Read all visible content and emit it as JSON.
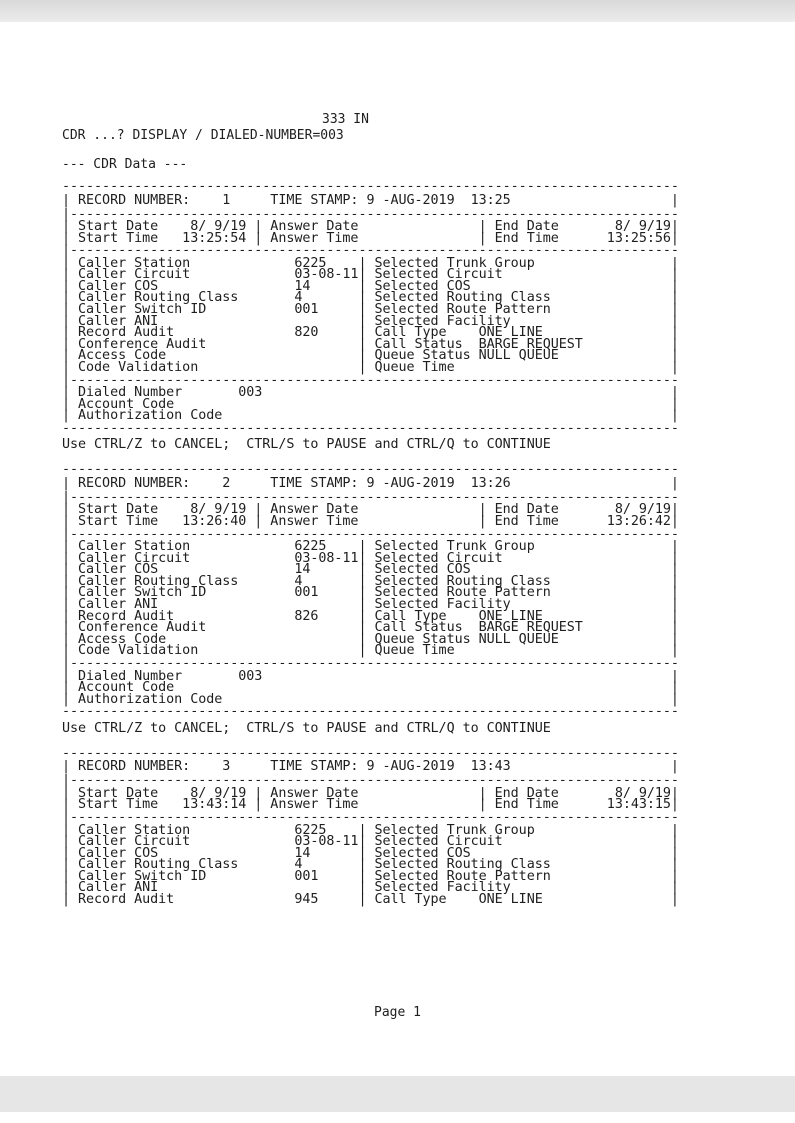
{
  "page_header": "333 IN",
  "command": "CDR ...? DISPLAY / DIALED-NUMBER=003",
  "section_title": "--- CDR Data ---",
  "footer_hint": "Use CTRL/Z to CANCEL;  CTRL/S to PAUSE and CTRL/Q to CONTINUE",
  "page_label": "Page 1",
  "labels": {
    "record_number": "RECORD NUMBER:",
    "time_stamp": "TIME STAMP:",
    "start_date": "Start Date",
    "start_time": "Start Time",
    "answer_date": "Answer Date",
    "answer_time": "Answer Time",
    "end_date": "End Date",
    "end_time": "End Time",
    "left_fields": [
      "Caller Station",
      "Caller Circuit",
      "Caller COS",
      "Caller Routing Class",
      "Caller Switch ID",
      "Caller ANI",
      "Record Audit",
      "Conference Audit",
      "Access Code",
      "Code Validation"
    ],
    "right_fields": [
      "Selected Trunk Group",
      "Selected Circuit",
      "Selected COS",
      "Selected Routing Class",
      "Selected Route Pattern",
      "Selected Facility",
      "Call Type",
      "Call Status",
      "Queue Status",
      "Queue Time"
    ],
    "dial_fields": [
      "Dialed Number",
      "Account Code",
      "Authorization Code"
    ]
  },
  "records": [
    {
      "number": "1",
      "time_stamp": "9 -AUG-2019  13:25",
      "start_date": "8/ 9/19",
      "start_time": "13:25:54",
      "end_date": "8/ 9/19",
      "end_time": "13:25:56",
      "left_values": [
        "6225",
        "03-08-11",
        "14",
        "4",
        "001",
        "",
        "820",
        "",
        "",
        ""
      ],
      "right_values": [
        "",
        "",
        "",
        "",
        "",
        "",
        "ONE LINE",
        "BARGE REQUEST",
        "NULL QUEUE",
        ""
      ],
      "dial_values": [
        "003",
        "",
        ""
      ]
    },
    {
      "number": "2",
      "time_stamp": "9 -AUG-2019  13:26",
      "start_date": "8/ 9/19",
      "start_time": "13:26:40",
      "end_date": "8/ 9/19",
      "end_time": "13:26:42",
      "left_values": [
        "6225",
        "03-08-11",
        "14",
        "4",
        "001",
        "",
        "826",
        "",
        "",
        ""
      ],
      "right_values": [
        "",
        "",
        "",
        "",
        "",
        "",
        "ONE LINE",
        "BARGE REQUEST",
        "NULL QUEUE",
        ""
      ],
      "dial_values": [
        "003",
        "",
        ""
      ]
    },
    {
      "number": "3",
      "time_stamp": "9 -AUG-2019  13:43",
      "start_date": "8/ 9/19",
      "start_time": "13:43:14",
      "end_date": "8/ 9/19",
      "end_time": "13:43:15",
      "left_values": [
        "6225",
        "03-08-11",
        "14",
        "4",
        "001",
        "",
        "945"
      ],
      "right_values": [
        "",
        "",
        "",
        "",
        "",
        "",
        "ONE LINE"
      ],
      "truncated": true
    }
  ]
}
